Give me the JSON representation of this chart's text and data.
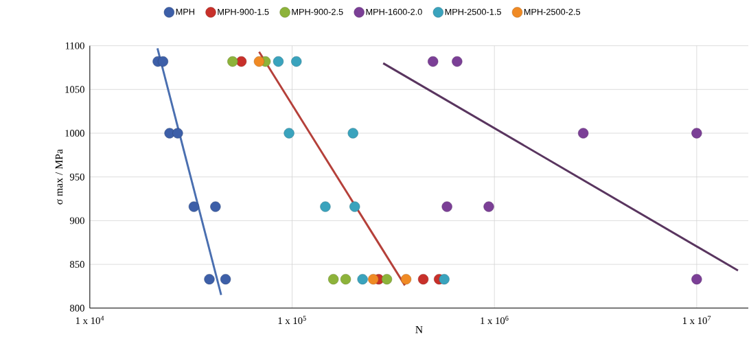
{
  "chart_data": {
    "type": "scatter",
    "xlabel": "N",
    "ylabel": "σ max / MPa",
    "log": "x",
    "grid": true,
    "legend": "top",
    "marker": "circle",
    "xlim": [
      10000,
      18000000
    ],
    "ylim": [
      800,
      1100
    ],
    "xticks": [
      {
        "value": 10000,
        "label": "1 x 10$^{4}$"
      },
      {
        "value": 100000,
        "label": "1 x 10$^{5}$"
      },
      {
        "value": 1000000,
        "label": "1 x 10$^{6}$"
      },
      {
        "value": 10000000,
        "label": "1 x 10$^{7}$"
      }
    ],
    "yticks": [
      800,
      850,
      900,
      950,
      1000,
      1050,
      1100
    ],
    "series": [
      {
        "name": "MPH",
        "color": "#3d5fa8",
        "x": [
          21700,
          23000,
          24800,
          27200,
          32700,
          41800,
          39000,
          46900
        ],
        "values": [
          1082,
          1082,
          1000,
          1000,
          916,
          916,
          833,
          833
        ]
      },
      {
        "name": "MPH-900-1.5",
        "color": "#c8302a",
        "x": [
          56100,
          268000,
          445000,
          533000
        ],
        "values": [
          1082,
          833,
          833,
          833
        ]
      },
      {
        "name": "MPH-900-2.5",
        "color": "#8db33a",
        "x": [
          50800,
          73800,
          160000,
          184000,
          294000
        ],
        "values": [
          1082,
          1082,
          833,
          833,
          833
        ]
      },
      {
        "name": "MPH-1600-2.0",
        "color": "#7b3f96",
        "x": [
          497000,
          654000,
          2750000,
          10000000,
          583000,
          938000,
          10000000
        ],
        "values": [
          1082,
          1082,
          1000,
          1000,
          916,
          916,
          833
        ]
      },
      {
        "name": "MPH-2500-1.5",
        "color": "#3aa3bd",
        "x": [
          85500,
          105000,
          96600,
          200000,
          146000,
          204000,
          223000,
          565000
        ],
        "values": [
          1082,
          1082,
          1000,
          1000,
          916,
          916,
          833,
          833
        ]
      },
      {
        "name": "MPH-2500-2.5",
        "color": "#f08a24",
        "x": [
          68700,
          252000,
          366000
        ],
        "values": [
          1082,
          833,
          833
        ]
      },
      {
        "type": "line",
        "color": "#4a6fb0",
        "marker": "none",
        "x": [
          21600,
          44600
        ],
        "values": [
          1097,
          815
        ]
      },
      {
        "type": "line",
        "color": "#b5403a",
        "marker": "none",
        "x": [
          68700,
          361000
        ],
        "values": [
          1093,
          826
        ]
      },
      {
        "type": "line",
        "color": "#59355f",
        "marker": "none",
        "x": [
          282000,
          16000000
        ],
        "values": [
          1080,
          843
        ]
      }
    ]
  }
}
